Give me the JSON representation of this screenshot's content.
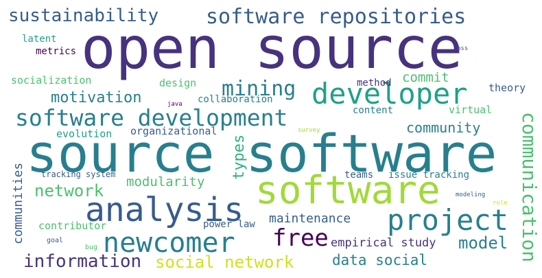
{
  "words": [
    {
      "text": "open source",
      "color": "#46327e"
    },
    {
      "text": "source software",
      "color": "#277f8e"
    },
    {
      "text": "software",
      "color": "#a0da39"
    },
    {
      "text": "analysis",
      "color": "#365c8d"
    },
    {
      "text": "developer",
      "color": "#1fa187"
    },
    {
      "text": "software development",
      "color": "#277f8e"
    },
    {
      "text": "software repositories",
      "color": "#365c8d"
    },
    {
      "text": "project",
      "color": "#277f8e"
    },
    {
      "text": "newcomer",
      "color": "#277f8e"
    },
    {
      "text": "sustainability",
      "color": "#365c8d"
    },
    {
      "text": "mining",
      "color": "#277f8e"
    },
    {
      "text": "motivation",
      "color": "#277f8e"
    },
    {
      "text": "free",
      "color": "#440154"
    },
    {
      "text": "communication",
      "color": "#4ac16d"
    },
    {
      "text": "information",
      "color": "#46327e"
    },
    {
      "text": "social network",
      "color": "#d0e11c"
    },
    {
      "text": "network",
      "color": "#4ac16d"
    },
    {
      "text": "model",
      "color": "#277f8e"
    },
    {
      "text": "community",
      "color": "#277f8e"
    },
    {
      "text": "data social",
      "color": "#277f8e"
    },
    {
      "text": "types",
      "color": "#2db27d"
    },
    {
      "text": "modularity",
      "color": "#4ac16d"
    },
    {
      "text": "communities",
      "color": "#365c8d"
    },
    {
      "text": "maintenance",
      "color": "#365c8d"
    },
    {
      "text": "empirical study",
      "color": "#46327e"
    },
    {
      "text": "commit",
      "color": "#4ac16d"
    },
    {
      "text": "theory",
      "color": "#365c8d"
    },
    {
      "text": "virtual",
      "color": "#4ac16d"
    },
    {
      "text": "content",
      "color": "#277f8e"
    },
    {
      "text": "method",
      "color": "#46327e"
    },
    {
      "text": "organizational",
      "color": "#365c8d"
    },
    {
      "text": "evolution",
      "color": "#1fa187"
    },
    {
      "text": "collaboration",
      "color": "#277f8e"
    },
    {
      "text": "design",
      "color": "#4ac16d"
    },
    {
      "text": "socialization",
      "color": "#4ac16d"
    },
    {
      "text": "latent",
      "color": "#1fa187"
    },
    {
      "text": "metrics",
      "color": "#440154"
    },
    {
      "text": "tracking system",
      "color": "#365c8d"
    },
    {
      "text": "teams",
      "color": "#365c8d"
    },
    {
      "text": "issue tracking",
      "color": "#277f8e"
    },
    {
      "text": "contributor",
      "color": "#4ac16d"
    },
    {
      "text": "power law",
      "color": "#365c8d"
    },
    {
      "text": "goal",
      "color": "#365c8d"
    },
    {
      "text": "bug",
      "color": "#4ac16d"
    },
    {
      "text": "java",
      "color": "#440154"
    },
    {
      "text": "survey",
      "color": "#a0da39"
    },
    {
      "text": "oss",
      "color": "#365c8d"
    },
    {
      "text": "modeling",
      "color": "#365c8d"
    },
    {
      "text": "role",
      "color": "#d0e11c"
    }
  ]
}
